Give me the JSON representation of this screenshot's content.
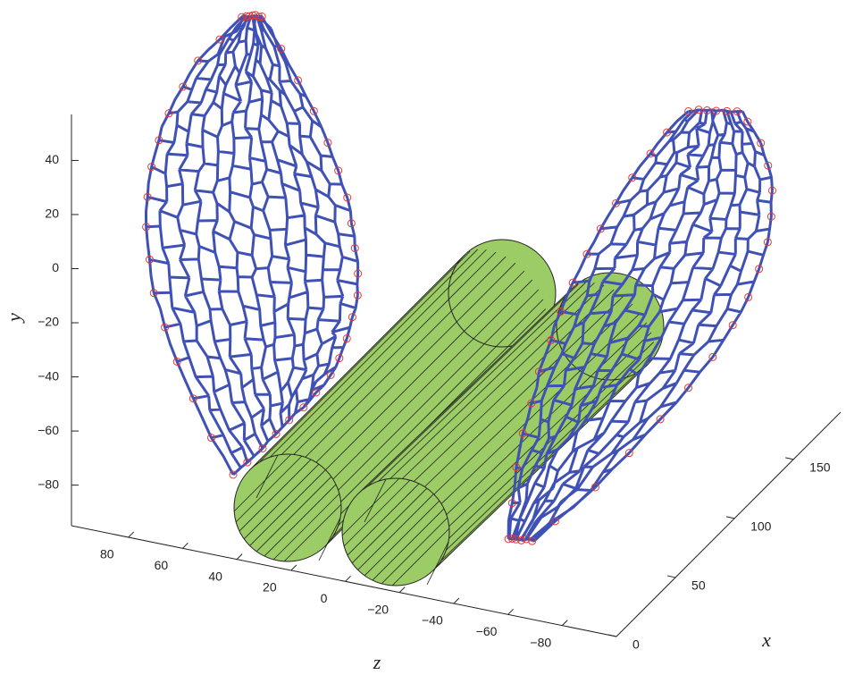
{
  "chart_data": {
    "type": "mesh3d",
    "xlabel": "x",
    "ylabel": "y",
    "zlabel": "z",
    "xlim": [
      0,
      190
    ],
    "xticks": [
      0,
      50,
      100,
      150
    ],
    "ylim": [
      -95,
      57
    ],
    "yticks": [
      {
        "value": -80,
        "label": "−80"
      },
      {
        "value": -60,
        "label": "−60"
      },
      {
        "value": -40,
        "label": "−40"
      },
      {
        "value": -20,
        "label": "−20"
      },
      0,
      20,
      40
    ],
    "zlim": [
      -100,
      101
    ],
    "zticks": [
      80,
      60,
      40,
      20,
      0,
      {
        "value": -20,
        "label": "−20"
      },
      {
        "value": -40,
        "label": "−40"
      },
      {
        "value": -60,
        "label": "−60"
      },
      {
        "value": -80,
        "label": "−80"
      }
    ],
    "mesh_color": "#3f51b5",
    "node_color": "#e53935",
    "cylinder_color": "#9ccc65"
  }
}
